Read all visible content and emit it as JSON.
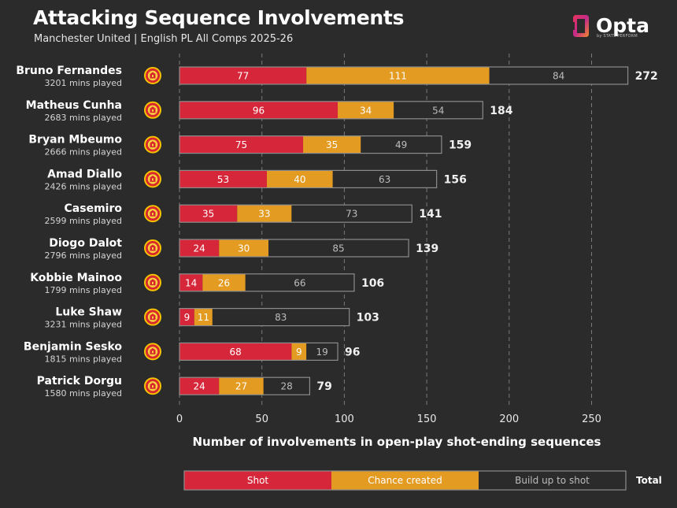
{
  "header": {
    "title": "Attacking Sequence Involvements",
    "subtitle": "Manchester United | English PL All Comps 2025-26"
  },
  "brand": {
    "name": "Opta",
    "tagline": "by STATS PERFORM"
  },
  "colors": {
    "background": "#2b2b2b",
    "shot": "#d6273a",
    "chance": "#e39b22",
    "buildup": "#2b2b2b",
    "outline": "#8c8c8c",
    "grid": "#7a7a7a"
  },
  "chart_data": {
    "type": "bar",
    "orientation": "horizontal",
    "stacked": true,
    "xlabel": "Number of involvements in open-play shot-ending sequences",
    "xlim": [
      0,
      272
    ],
    "xticks": [
      0,
      50,
      100,
      150,
      200,
      250
    ],
    "grid": "vertical dashed",
    "legend": {
      "placement": "bottom",
      "entries": [
        "Shot",
        "Chance created",
        "Build up to shot"
      ],
      "total_label": "Total"
    },
    "players": [
      {
        "name": "Bruno Fernandes",
        "mins": "3201 mins played",
        "shot": 77,
        "chance": 111,
        "buildup": 84,
        "total": 272
      },
      {
        "name": "Matheus Cunha",
        "mins": "2683 mins played",
        "shot": 96,
        "chance": 34,
        "buildup": 54,
        "total": 184
      },
      {
        "name": "Bryan Mbeumo",
        "mins": "2666 mins played",
        "shot": 75,
        "chance": 35,
        "buildup": 49,
        "total": 159
      },
      {
        "name": "Amad Diallo",
        "mins": "2426 mins played",
        "shot": 53,
        "chance": 40,
        "buildup": 63,
        "total": 156
      },
      {
        "name": "Casemiro",
        "mins": "2599 mins played",
        "shot": 35,
        "chance": 33,
        "buildup": 73,
        "total": 141
      },
      {
        "name": "Diogo Dalot",
        "mins": "2796 mins played",
        "shot": 24,
        "chance": 30,
        "buildup": 85,
        "total": 139
      },
      {
        "name": "Kobbie Mainoo",
        "mins": "1799 mins played",
        "shot": 14,
        "chance": 26,
        "buildup": 66,
        "total": 106
      },
      {
        "name": "Luke Shaw",
        "mins": "3231 mins played",
        "shot": 9,
        "chance": 11,
        "buildup": 83,
        "total": 103
      },
      {
        "name": "Benjamin Sesko",
        "mins": "1815 mins played",
        "shot": 68,
        "chance": 9,
        "buildup": 19,
        "total": 96
      },
      {
        "name": "Patrick Dorgu",
        "mins": "1580 mins played",
        "shot": 24,
        "chance": 27,
        "buildup": 28,
        "total": 79
      }
    ]
  }
}
